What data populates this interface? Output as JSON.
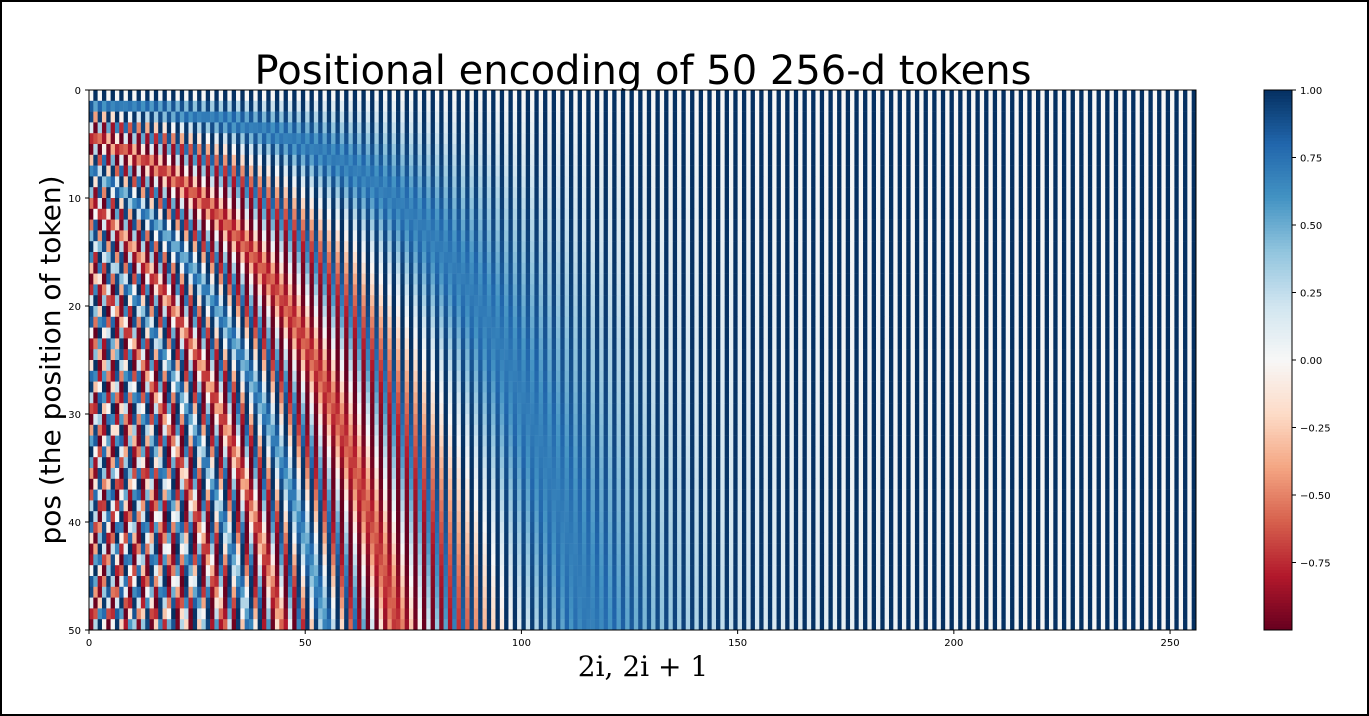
{
  "chart_data": {
    "type": "heatmap",
    "title": "Positional encoding of 50 256-d tokens",
    "xlabel": "2i, 2i + 1",
    "ylabel": "pos (the position of token)",
    "n_positions": 50,
    "d_model": 256,
    "encoding": "sinusoidal: even columns sin(pos / 10000^(2i/d_model)), odd columns cos(pos / 10000^(2i/d_model))",
    "xlim": [
      0,
      256
    ],
    "ylim": [
      50,
      0
    ],
    "xticks": [
      0,
      50,
      100,
      150,
      200,
      250
    ],
    "yticks": [
      0,
      10,
      20,
      30,
      40,
      50
    ],
    "colorbar": {
      "cmap": "RdBu",
      "vmin": -1.0,
      "vmax": 1.0,
      "ticks": [
        "1.00",
        "0.75",
        "0.50",
        "0.25",
        "0.00",
        "−0.25",
        "−0.50",
        "−0.75"
      ],
      "tick_values": [
        1.0,
        0.75,
        0.5,
        0.25,
        0.0,
        -0.25,
        -0.5,
        -0.75
      ]
    },
    "grid": false
  }
}
